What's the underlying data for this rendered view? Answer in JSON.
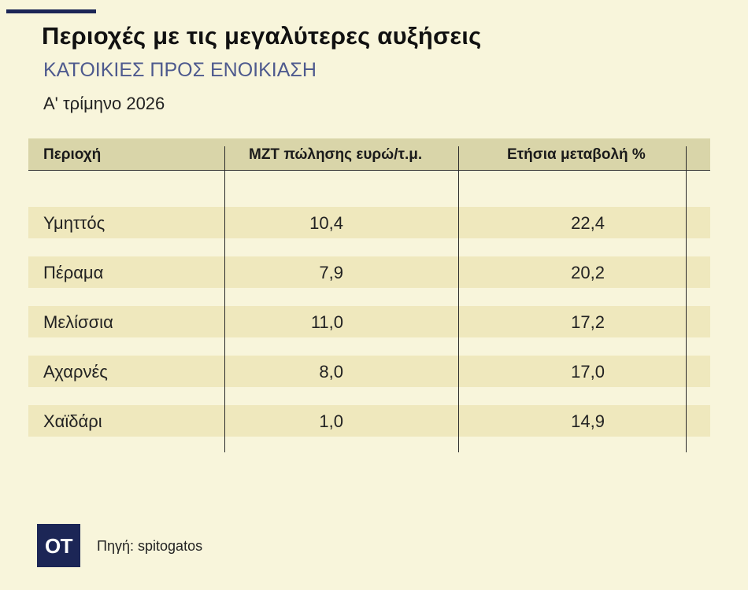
{
  "header": {
    "title": "Περιοχές με τις μεγαλύτερες αυξήσεις",
    "subtitle": "ΚΑΤΟΙΚΙΕΣ ΠΡΟΣ ΕΝΟΙΚΙΑΣΗ",
    "period": "Α' τρίμηνο 2026"
  },
  "colors": {
    "background": "#f8f5db",
    "header_band": "#d9d5a9",
    "row_band": "#efe8bd",
    "subtitle": "#4e5a8e",
    "brand": "#1c2656"
  },
  "chart_data": {
    "type": "table",
    "columns": [
      "Περιοχή",
      "ΜΖΤ πώλησης ευρώ/τ.μ.",
      "Ετήσια μεταβολή %"
    ],
    "rows": [
      {
        "region": "Υμηττός",
        "price": "10,4",
        "change": "22,4"
      },
      {
        "region": "Πέραμα",
        "price": "7,9",
        "change": "20,2"
      },
      {
        "region": "Μελίσσια",
        "price": "11,0",
        "change": "17,2"
      },
      {
        "region": "Αχαρνές",
        "price": "8,0",
        "change": "17,0"
      },
      {
        "region": "Χαϊδάρι",
        "price": "1,0",
        "change": "14,9"
      }
    ]
  },
  "footer": {
    "logo_text": "OT",
    "source": "Πηγή: spitogatos"
  }
}
